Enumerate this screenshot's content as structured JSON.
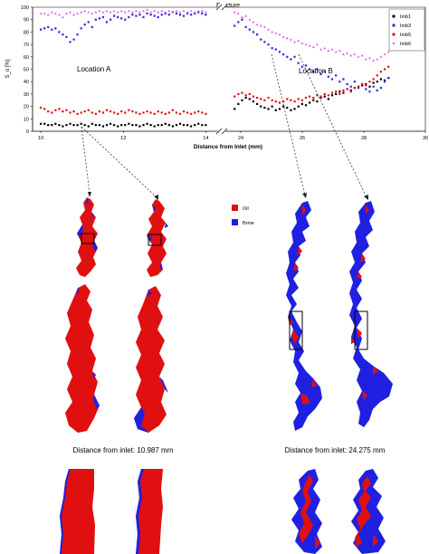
{
  "chart_data": {
    "type": "scatter",
    "title": "Fracture",
    "xlabel": "Distance from Inlet (mm)",
    "ylabel": "S_o [%]",
    "ylim": [
      0,
      100
    ],
    "yticks": [
      0,
      10,
      20,
      30,
      40,
      50,
      60,
      70,
      80,
      90,
      100
    ],
    "xticks_left": [
      10,
      12,
      14
    ],
    "xticks_right": [
      24,
      26,
      28,
      30
    ],
    "axis_break": true,
    "grid": false,
    "legend_position": "top-right",
    "annotations": [
      "Location A",
      "Location B"
    ],
    "series": [
      {
        "name": "Imb1",
        "color": "#000000",
        "marker": "square",
        "segments": [
          {
            "x_range": [
              10.0,
              14.0
            ],
            "values": [
              6,
              6,
              5,
              5,
              6,
              5,
              4,
              5,
              6,
              5,
              5,
              6,
              5,
              4,
              6,
              5,
              5,
              4,
              5,
              6,
              5,
              4,
              5,
              5,
              6,
              5,
              5,
              4,
              5,
              6,
              5,
              4,
              5,
              5,
              6,
              5,
              4,
              5,
              6,
              5,
              5,
              4,
              5,
              6,
              5,
              5
            ]
          },
          {
            "x_range": [
              23.8,
              28.8
            ],
            "values": [
              18,
              22,
              25,
              27,
              26,
              24,
              22,
              20,
              19,
              18,
              20,
              17,
              18,
              20,
              19,
              17,
              18,
              20,
              22,
              21,
              23,
              25,
              24,
              27,
              28,
              26,
              29,
              30,
              32,
              31,
              34,
              33,
              35,
              36,
              37,
              38,
              36,
              39,
              40,
              42,
              41,
              43
            ]
          }
        ]
      },
      {
        "name": "Imb3",
        "color": "#2a2adf",
        "marker": "square",
        "segments": [
          {
            "x_range": [
              10.0,
              14.0
            ],
            "values": [
              82,
              83,
              84,
              82,
              83,
              80,
              78,
              76,
              72,
              74,
              78,
              83,
              86,
              88,
              84,
              90,
              91,
              92,
              88,
              90,
              93,
              92,
              91,
              90,
              92,
              94,
              93,
              94,
              92,
              95,
              94,
              93,
              92,
              94,
              95,
              94,
              96,
              95,
              94,
              93,
              95,
              94,
              95,
              96,
              95,
              94
            ]
          },
          {
            "x_range": [
              23.8,
              28.8
            ],
            "values": [
              85,
              88,
              90,
              84,
              82,
              80,
              78,
              74,
              72,
              70,
              67,
              66,
              64,
              62,
              60,
              58,
              60,
              55,
              52,
              53,
              50,
              48,
              50,
              46,
              48,
              44,
              42,
              45,
              40,
              42,
              38,
              36,
              40,
              35,
              38,
              34,
              32,
              36,
              33,
              35,
              40,
              43
            ]
          }
        ]
      },
      {
        "name": "Imb5",
        "color": "#e01010",
        "marker": "square",
        "segments": [
          {
            "x_range": [
              10.0,
              14.0
            ],
            "values": [
              19,
              18,
              16,
              15,
              17,
              18,
              16,
              17,
              15,
              16,
              14,
              15,
              16,
              17,
              15,
              14,
              16,
              15,
              17,
              16,
              15,
              14,
              16,
              15,
              17,
              16,
              15,
              14,
              15,
              16,
              15,
              14,
              16,
              15,
              14,
              15,
              17,
              15,
              14,
              16,
              15,
              14,
              15,
              16,
              15,
              14
            ]
          },
          {
            "x_range": [
              23.8,
              28.8
            ],
            "values": [
              28,
              30,
              31,
              29,
              30,
              28,
              27,
              26,
              25,
              27,
              25,
              24,
              23,
              24,
              26,
              25,
              24,
              26,
              25,
              27,
              28,
              27,
              29,
              28,
              30,
              29,
              31,
              32,
              30,
              33,
              34,
              32,
              35,
              36,
              38,
              37,
              40,
              42,
              45,
              48,
              50,
              52
            ]
          }
        ]
      },
      {
        "name": "Imb6",
        "color": "#e05ae0",
        "marker": "triangle",
        "segments": [
          {
            "x_range": [
              10.0,
              14.0
            ],
            "values": [
              95,
              95,
              94,
              96,
              95,
              94,
              92,
              95,
              96,
              94,
              95,
              96,
              97,
              96,
              95,
              96,
              97,
              96,
              97,
              96,
              97,
              96,
              97,
              96,
              97,
              96,
              97,
              96,
              97,
              98,
              96,
              97,
              96,
              97,
              96,
              97,
              96,
              97,
              96,
              97,
              96,
              97,
              96,
              97,
              97,
              96
            ]
          },
          {
            "x_range": [
              23.8,
              28.8
            ],
            "values": [
              96,
              95,
              92,
              93,
              90,
              88,
              86,
              85,
              84,
              82,
              80,
              79,
              78,
              76,
              75,
              74,
              72,
              73,
              71,
              70,
              69,
              68,
              70,
              66,
              67,
              65,
              66,
              64,
              65,
              62,
              63,
              61,
              62,
              60,
              61,
              58,
              59,
              57,
              58,
              60,
              62,
              64
            ]
          }
        ]
      }
    ]
  },
  "images": {
    "legend": [
      {
        "label": "Oil",
        "color": "#e01010"
      },
      {
        "label": "Brine",
        "color": "#2020e0"
      }
    ],
    "caption_left": "Distance from inlet:  10.987 mm",
    "caption_right": "Distance from inlet:  24.275 mm"
  }
}
